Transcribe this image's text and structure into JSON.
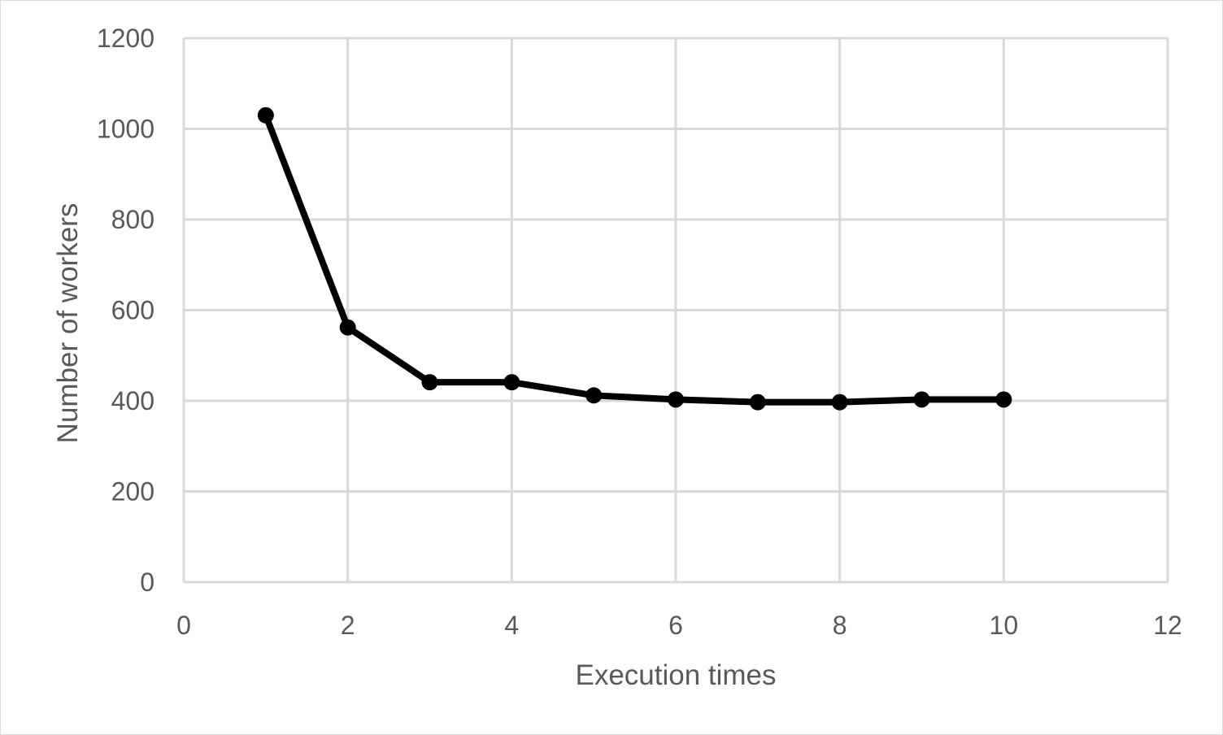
{
  "chart_data": {
    "type": "line",
    "title": "",
    "xlabel": "Execution times",
    "ylabel": "Number of workers",
    "xlim": [
      0,
      12
    ],
    "ylim": [
      0,
      1200
    ],
    "xticks": [
      0,
      2,
      4,
      6,
      8,
      10,
      12
    ],
    "yticks": [
      0,
      200,
      400,
      600,
      800,
      1000,
      1200
    ],
    "grid": true,
    "legend": "none",
    "colors": {
      "line": "#000000",
      "grid": "#d9d9d9",
      "text": "#595959"
    },
    "series": [
      {
        "x": [
          1,
          2,
          3,
          4,
          5,
          6,
          7,
          8,
          9,
          10
        ],
        "y": [
          1030,
          562,
          441,
          441,
          412,
          403,
          397,
          397,
          403,
          403
        ]
      }
    ]
  }
}
